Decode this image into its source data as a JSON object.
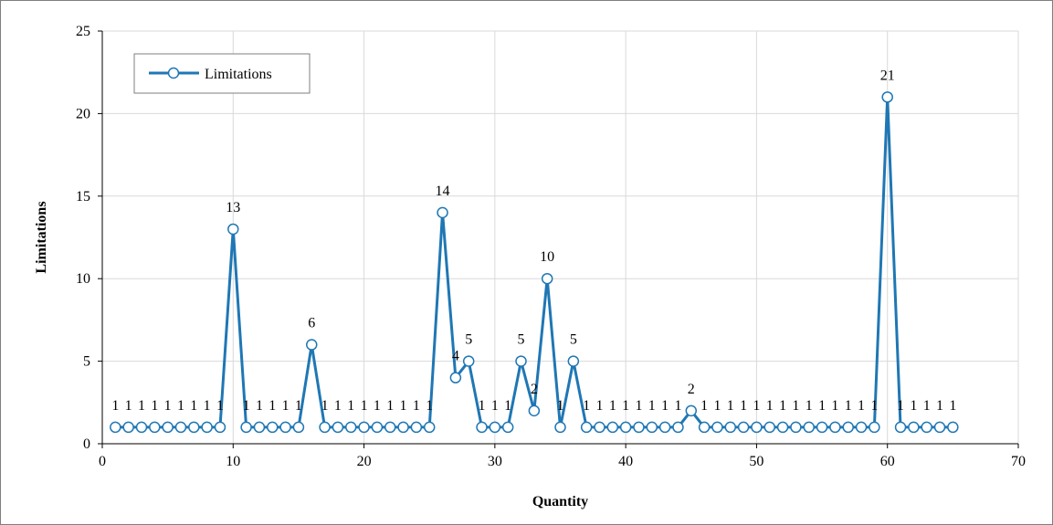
{
  "chart_data": {
    "type": "line",
    "title": "",
    "xlabel": "Quantity",
    "ylabel": "Limitations",
    "xlim": [
      0,
      70
    ],
    "ylim": [
      0,
      25
    ],
    "xticks": [
      0,
      10,
      20,
      30,
      40,
      50,
      60,
      70
    ],
    "yticks": [
      0,
      5,
      10,
      15,
      20,
      25
    ],
    "grid": true,
    "legend_position": "top-left",
    "series": [
      {
        "name": "Limitations",
        "color": "#1f77b4",
        "marker": "open-circle",
        "x": [
          1,
          2,
          3,
          4,
          5,
          6,
          7,
          8,
          9,
          10,
          11,
          12,
          13,
          14,
          15,
          16,
          17,
          18,
          19,
          20,
          21,
          22,
          23,
          24,
          25,
          26,
          27,
          28,
          29,
          30,
          31,
          32,
          33,
          34,
          35,
          36,
          37,
          38,
          39,
          40,
          41,
          42,
          43,
          44,
          45,
          46,
          47,
          48,
          49,
          50,
          51,
          52,
          53,
          54,
          55,
          56,
          57,
          58,
          59,
          60,
          61,
          62,
          63,
          64,
          65
        ],
        "y": [
          1,
          1,
          1,
          1,
          1,
          1,
          1,
          1,
          1,
          13,
          1,
          1,
          1,
          1,
          1,
          6,
          1,
          1,
          1,
          1,
          1,
          1,
          1,
          1,
          1,
          14,
          4,
          5,
          1,
          1,
          1,
          5,
          2,
          10,
          1,
          5,
          1,
          1,
          1,
          1,
          1,
          1,
          1,
          1,
          2,
          1,
          1,
          1,
          1,
          1,
          1,
          1,
          1,
          1,
          1,
          1,
          1,
          1,
          1,
          21,
          1,
          1,
          1,
          1,
          1
        ]
      }
    ],
    "data_labels": true
  }
}
